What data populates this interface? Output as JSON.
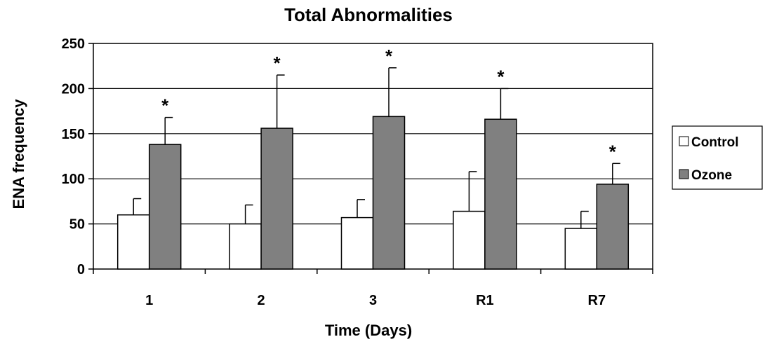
{
  "chart_data": {
    "type": "bar",
    "title": "Total Abnormalities",
    "xlabel": "Time (Days)",
    "ylabel": "ENA frequency",
    "categories": [
      "1",
      "2",
      "3",
      "R1",
      "R7"
    ],
    "ylim": [
      0,
      250
    ],
    "yticks": [
      0,
      50,
      100,
      150,
      200,
      250
    ],
    "grid": true,
    "legend_position": "right",
    "series": [
      {
        "name": "Control",
        "color": "#ffffff",
        "values": [
          60,
          50,
          57,
          64,
          45
        ],
        "errors": [
          18,
          21,
          20,
          44,
          19
        ]
      },
      {
        "name": "Ozone",
        "color": "#808080",
        "values": [
          138,
          156,
          169,
          166,
          94
        ],
        "errors": [
          30,
          59,
          54,
          34,
          23
        ]
      }
    ],
    "significance_marker": "*",
    "significant": [
      false,
      true
    ]
  }
}
